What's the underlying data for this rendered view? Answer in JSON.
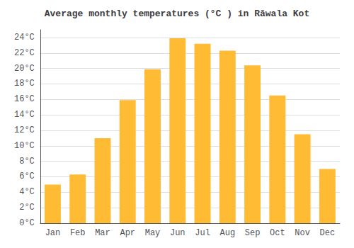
{
  "chart_data": {
    "type": "bar",
    "title": "Average monthly temperatures (°C ) in Rāwala Kot",
    "categories": [
      "Jan",
      "Feb",
      "Mar",
      "Apr",
      "May",
      "Jun",
      "Jul",
      "Aug",
      "Sep",
      "Oct",
      "Nov",
      "Dec"
    ],
    "values": [
      5.0,
      6.3,
      11.0,
      15.9,
      19.9,
      23.9,
      23.2,
      22.3,
      20.4,
      16.5,
      11.5,
      7.0
    ],
    "color": "#FFBB33",
    "ylim": [
      0,
      25
    ],
    "yticks": [
      {
        "value": 0,
        "label": "0°C"
      },
      {
        "value": 2,
        "label": "2°C"
      },
      {
        "value": 4,
        "label": "4°C"
      },
      {
        "value": 6,
        "label": "6°C"
      },
      {
        "value": 8,
        "label": "8°C"
      },
      {
        "value": 10,
        "label": "10°C"
      },
      {
        "value": 12,
        "label": "12°C"
      },
      {
        "value": 14,
        "label": "14°C"
      },
      {
        "value": 16,
        "label": "16°C"
      },
      {
        "value": 18,
        "label": "18°C"
      },
      {
        "value": 20,
        "label": "20°C"
      },
      {
        "value": 22,
        "label": "22°C"
      },
      {
        "value": 24,
        "label": "24°C"
      }
    ],
    "grid": true
  }
}
